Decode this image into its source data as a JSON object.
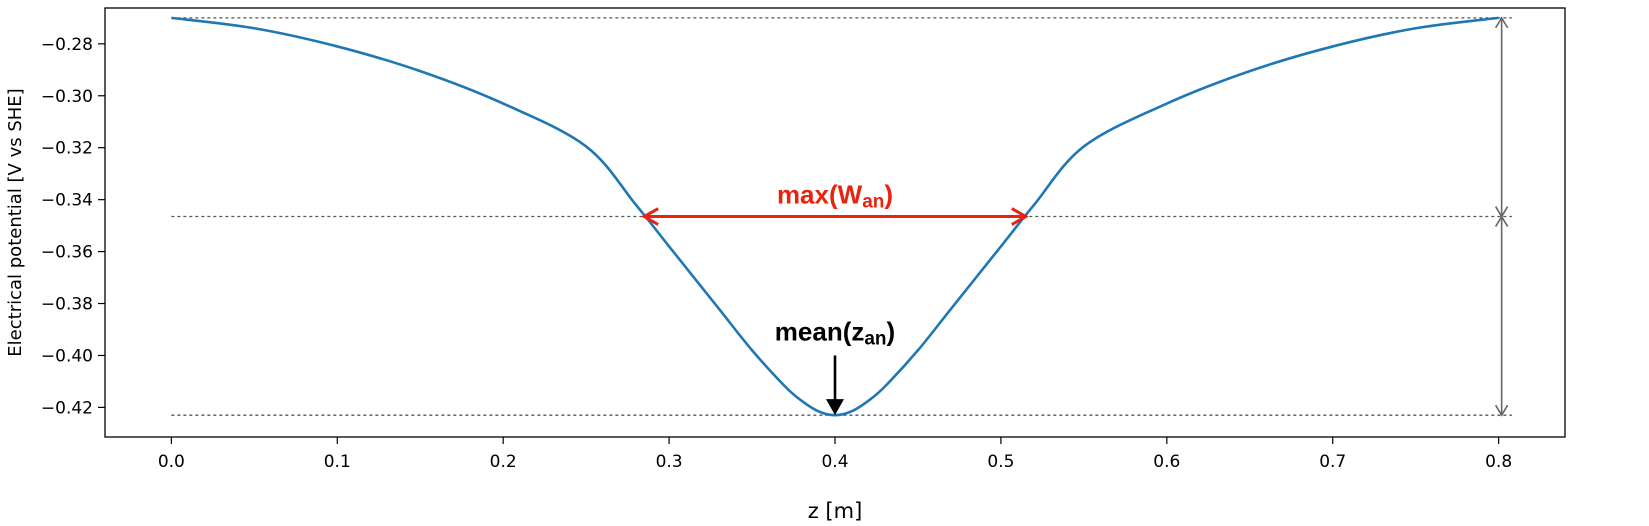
{
  "chart_data": {
    "type": "line",
    "xlabel": "z  [m]",
    "ylabel": "Electrical potential [V vs SHE]",
    "xlim": [
      -0.04,
      0.84
    ],
    "ylim": [
      -0.4314,
      -0.2662
    ],
    "x_ticks": [
      {
        "value": 0.0,
        "label": "0.0"
      },
      {
        "value": 0.1,
        "label": "0.1"
      },
      {
        "value": 0.2,
        "label": "0.2"
      },
      {
        "value": 0.3,
        "label": "0.3"
      },
      {
        "value": 0.4,
        "label": "0.4"
      },
      {
        "value": 0.5,
        "label": "0.5"
      },
      {
        "value": 0.6,
        "label": "0.6"
      },
      {
        "value": 0.7,
        "label": "0.7"
      },
      {
        "value": 0.8,
        "label": "0.8"
      }
    ],
    "y_ticks": [
      {
        "value": -0.28,
        "label": "−0.28"
      },
      {
        "value": -0.3,
        "label": "−0.30"
      },
      {
        "value": -0.32,
        "label": "−0.32"
      },
      {
        "value": -0.34,
        "label": "−0.34"
      },
      {
        "value": -0.36,
        "label": "−0.36"
      },
      {
        "value": -0.38,
        "label": "−0.38"
      },
      {
        "value": -0.4,
        "label": "−0.40"
      },
      {
        "value": -0.42,
        "label": "−0.42"
      }
    ],
    "grid": false,
    "series": [
      {
        "color": "#1f77b4",
        "points": [
          [
            0.0,
            -0.27
          ],
          [
            0.05,
            -0.274
          ],
          [
            0.1,
            -0.281
          ],
          [
            0.15,
            -0.2905
          ],
          [
            0.2,
            -0.303
          ],
          [
            0.25,
            -0.3195
          ],
          [
            0.28,
            -0.342
          ],
          [
            0.3,
            -0.358
          ],
          [
            0.33,
            -0.382
          ],
          [
            0.35,
            -0.398
          ],
          [
            0.37,
            -0.412
          ],
          [
            0.38,
            -0.4175
          ],
          [
            0.39,
            -0.4215
          ],
          [
            0.4,
            -0.423
          ],
          [
            0.41,
            -0.4215
          ],
          [
            0.42,
            -0.4175
          ],
          [
            0.43,
            -0.412
          ],
          [
            0.45,
            -0.398
          ],
          [
            0.47,
            -0.382
          ],
          [
            0.5,
            -0.358
          ],
          [
            0.52,
            -0.342
          ],
          [
            0.55,
            -0.3195
          ],
          [
            0.6,
            -0.303
          ],
          [
            0.65,
            -0.2905
          ],
          [
            0.7,
            -0.281
          ],
          [
            0.75,
            -0.274
          ],
          [
            0.8,
            -0.27
          ]
        ]
      }
    ],
    "reference_lines": [
      {
        "y": -0.27,
        "style": "dotted",
        "color": "#555555"
      },
      {
        "y": -0.3465,
        "style": "dotted",
        "color": "#555555"
      },
      {
        "y": -0.423,
        "style": "dotted",
        "color": "#555555"
      }
    ],
    "annotations": {
      "width_arrow": {
        "x1": 0.285,
        "x2": 0.515,
        "y": -0.3465,
        "color": "#e8230f",
        "text": "max(W",
        "subscript": "an",
        "close": ")"
      },
      "mean_arrow": {
        "x": 0.4,
        "y_from": -0.4,
        "y_to": -0.423,
        "color": "#000000",
        "text": "mean(z",
        "subscript": "an",
        "close": ")"
      },
      "range_arrows": [
        {
          "x": 0.8,
          "y1": -0.27,
          "y2": -0.3465,
          "color": "#666666"
        },
        {
          "x": 0.8,
          "y1": -0.3465,
          "y2": -0.423,
          "color": "#666666"
        }
      ]
    }
  }
}
